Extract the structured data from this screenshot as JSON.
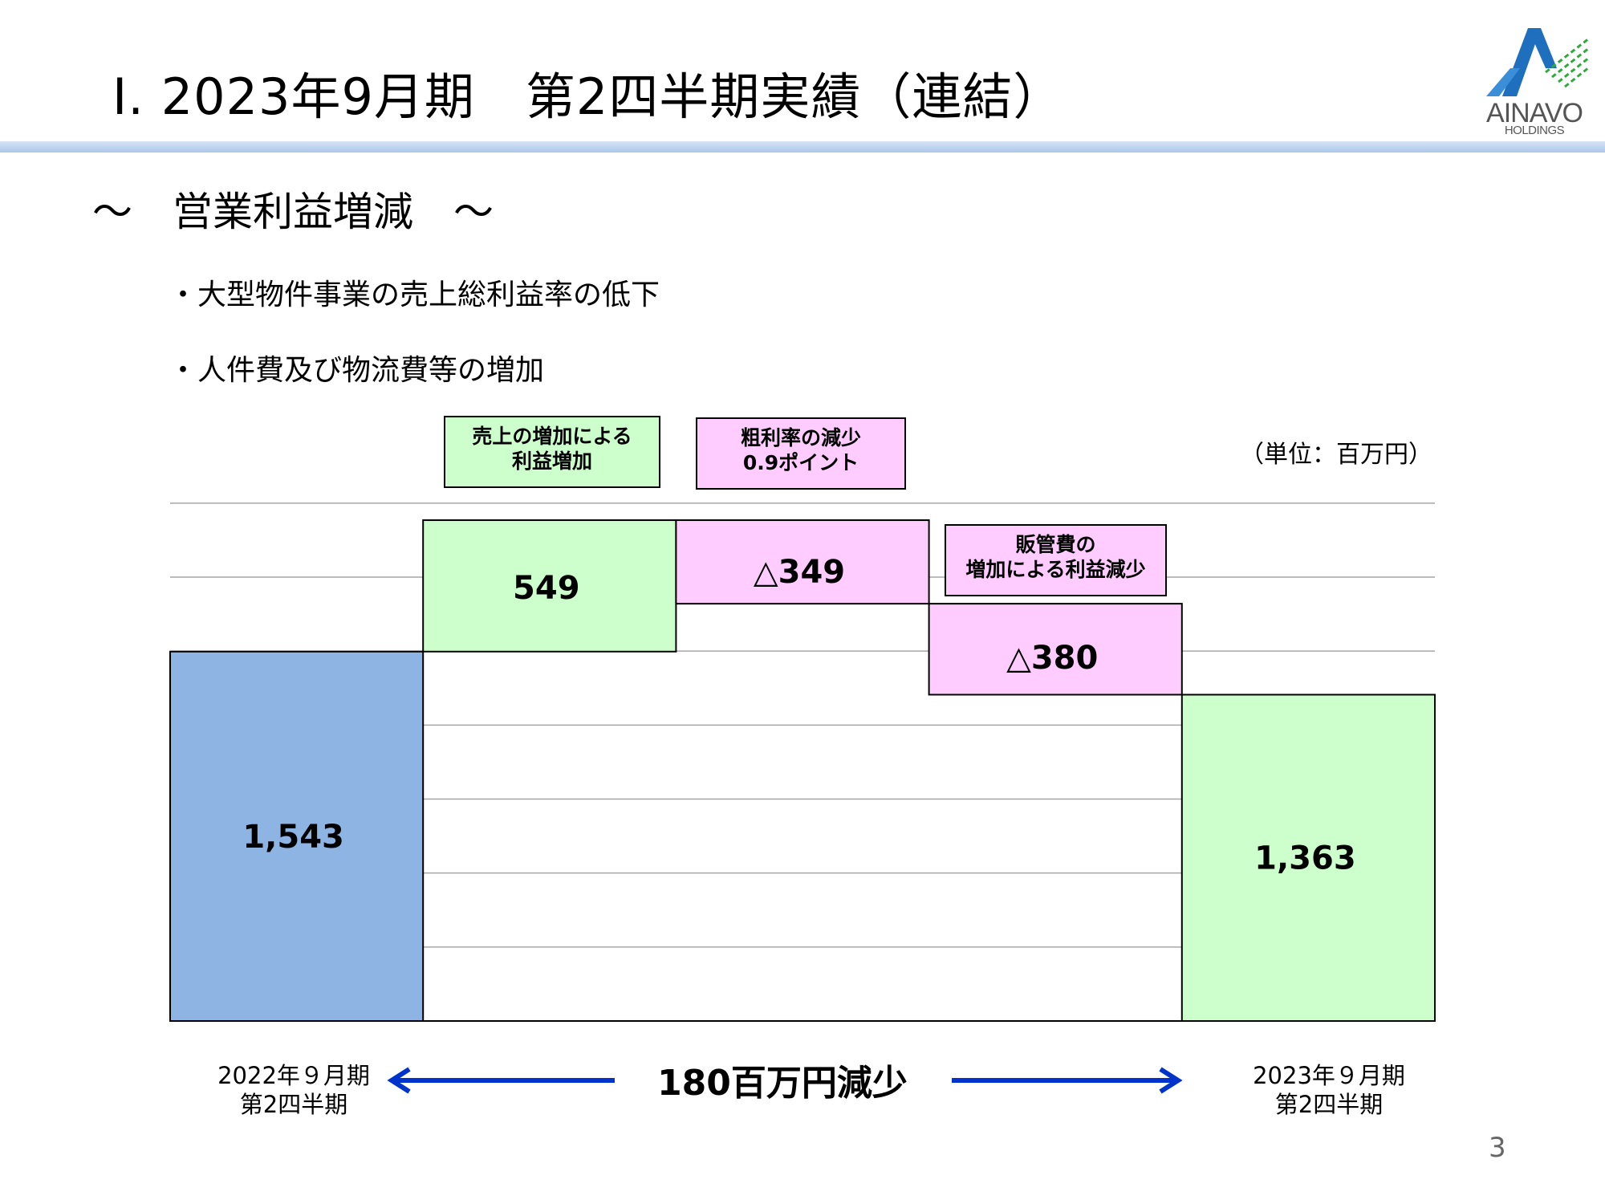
{
  "header": {
    "title": "Ⅰ. 2023年9月期　第2四半期実績（連結）",
    "logo_name": "AINAVO",
    "logo_sub": "HOLDINGS"
  },
  "section": {
    "heading": "～　営業利益増減　～",
    "bullets": [
      "・大型物件事業の売上総利益率の低下",
      "・人件費及び物流費等の増加"
    ]
  },
  "chart_data": {
    "type": "bar",
    "subtype": "waterfall",
    "unit_label": "（単位：百万円）",
    "categories": [
      "2022年９月期 第2四半期",
      "売上の増加による利益増加",
      "粗利率の減少 0.9ポイント",
      "販管費の増加による利益減少",
      "2023年９月期 第2四半期"
    ],
    "values": [
      1543,
      549,
      -349,
      -380,
      1363
    ],
    "data_labels": [
      "1,543",
      "549",
      "△349",
      "△380",
      "1,363"
    ],
    "bar_kinds": [
      "total",
      "increase",
      "decrease",
      "decrease",
      "total"
    ],
    "notes": [
      {
        "lines": [
          "売上の増加による",
          "利益増加"
        ]
      },
      {
        "lines": [
          "粗利率の減少",
          "0.9ポイント"
        ]
      },
      {
        "lines": [
          "販管費の",
          "増加による利益減少"
        ]
      }
    ],
    "period_labels": {
      "start": [
        "2022年９月期",
        "第2四半期"
      ],
      "end": [
        "2023年９月期",
        "第2四半期"
      ]
    },
    "difference_label": "180百万円減少",
    "ylim": [
      0,
      2300
    ],
    "gridlines": [
      309,
      618,
      927,
      1236,
      1545,
      1854,
      2163
    ],
    "grid": true,
    "colors": {
      "start": "#8eb4e3",
      "increase": "#ccffcc",
      "decrease": "#ffccff",
      "end": "#ccffcc",
      "arrow": "#0033cc",
      "gridline": "#a6a6a6"
    }
  },
  "page_number": "3"
}
